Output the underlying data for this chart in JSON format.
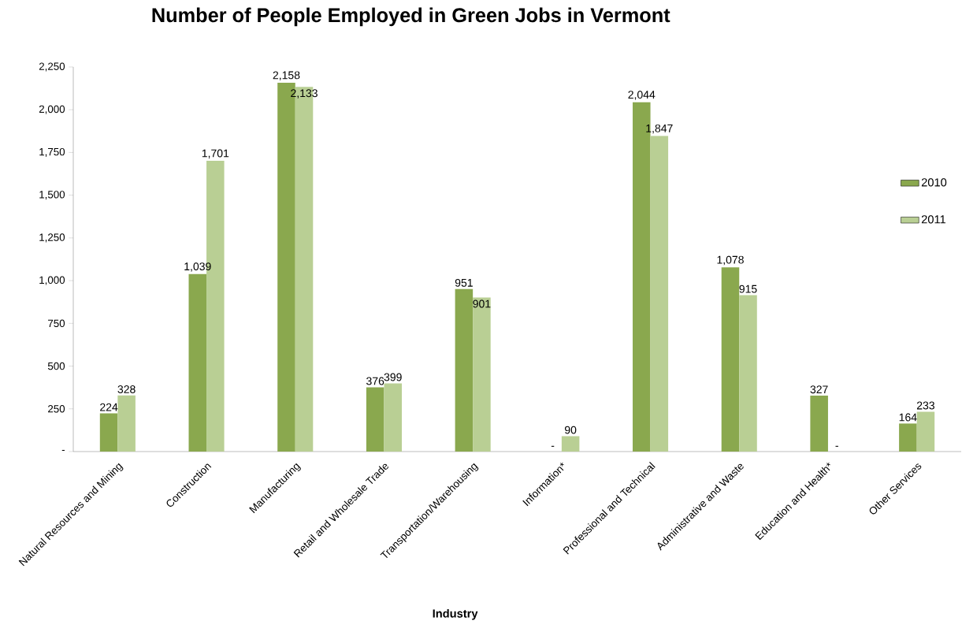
{
  "chart_data": {
    "type": "bar",
    "title": "Number of People Employed in Green Jobs in Vermont",
    "xlabel": "Industry",
    "categories": [
      "Natural Resources and Mining",
      "Construction",
      "Manufacturing",
      "Retail and Wholesale Trade",
      "Transportation/Warehousing",
      "Information*",
      "Professional and Technical",
      "Administrative and Waste",
      "Education and Health*",
      "Other Services"
    ],
    "series": [
      {
        "name": "2010",
        "color": "#8aa84e",
        "values": [
          224,
          1039,
          2158,
          376,
          951,
          0,
          2044,
          1078,
          327,
          164
        ],
        "value_labels": [
          "224",
          "1,039",
          "2,158",
          "376",
          "951",
          "-",
          "2,044",
          "1,078",
          "327",
          "164"
        ]
      },
      {
        "name": "2011",
        "color": "#b9cf94",
        "values": [
          328,
          1701,
          2133,
          399,
          901,
          90,
          1847,
          915,
          0,
          233
        ],
        "value_labels": [
          "328",
          "1,701",
          "2,133",
          "399",
          "901",
          "90",
          "1,847",
          "915",
          "-",
          "233"
        ]
      }
    ],
    "ylim": [
      0,
      2250
    ],
    "yticks": [
      {
        "value": 0,
        "label": "-"
      },
      250,
      500,
      750,
      {
        "value": 1000,
        "label": "1,000"
      },
      {
        "value": 1250,
        "label": "1,250"
      },
      {
        "value": 1500,
        "label": "1,500"
      },
      {
        "value": 1750,
        "label": "1,750"
      },
      {
        "value": 2000,
        "label": "2,000"
      },
      {
        "value": 2250,
        "label": "2,250"
      }
    ],
    "legend": "right",
    "grid": false
  }
}
